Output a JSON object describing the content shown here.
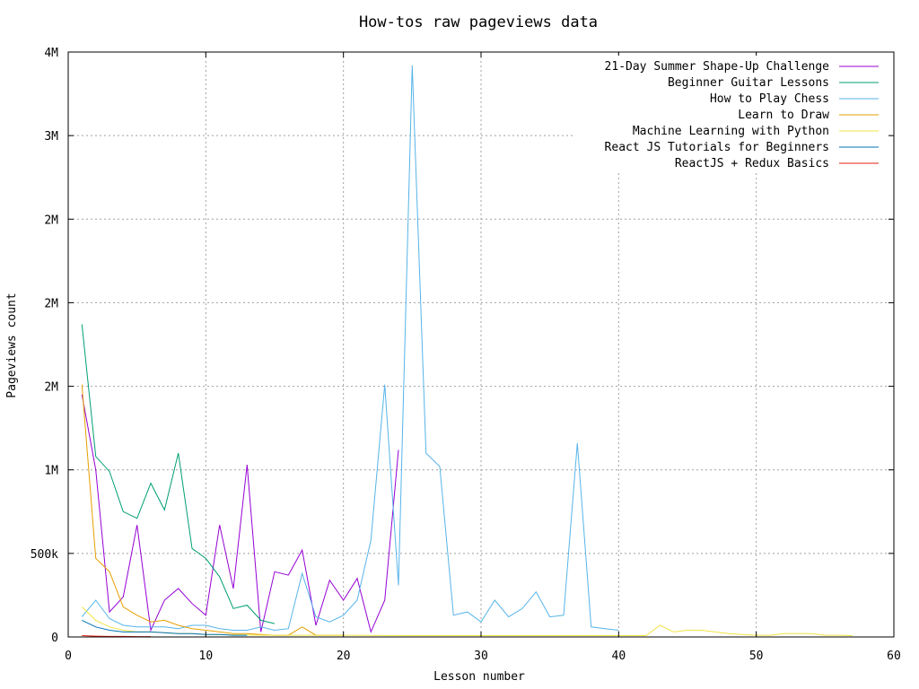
{
  "chart_data": {
    "type": "line",
    "title": "How-tos raw pageviews data",
    "xlabel": "Lesson number",
    "ylabel": "Pageviews count",
    "xlim": [
      0,
      60
    ],
    "ylim": [
      0,
      3500000
    ],
    "grid": true,
    "legend_position": "top-right",
    "x_ticks": [
      0,
      10,
      20,
      30,
      40,
      50,
      60
    ],
    "x_tick_labels": [
      "0",
      "10",
      "20",
      "30",
      "40",
      "50",
      "60"
    ],
    "y_ticks": [
      0,
      500000,
      1000000,
      1500000,
      2000000,
      2500000,
      3000000,
      3500000
    ],
    "y_tick_labels": [
      "0",
      "500k",
      "1M",
      "2M",
      "2M",
      "2M",
      "3M",
      "4M"
    ],
    "series": [
      {
        "name": "21-Day Summer Shape-Up Challenge",
        "color": "#9400d3",
        "x": [
          1,
          2,
          3,
          4,
          5,
          6,
          7,
          8,
          9,
          10,
          11,
          12,
          13,
          14,
          15,
          16,
          17,
          18,
          19,
          20,
          21,
          22,
          23,
          24
        ],
        "y": [
          1450000,
          1000000,
          150000,
          240000,
          670000,
          40000,
          220000,
          290000,
          200000,
          130000,
          670000,
          290000,
          1030000,
          30000,
          390000,
          370000,
          520000,
          70000,
          340000,
          220000,
          350000,
          30000,
          220000,
          1120000
        ]
      },
      {
        "name": "Beginner Guitar Lessons",
        "color": "#009e73",
        "x": [
          1,
          2,
          3,
          4,
          5,
          6,
          7,
          8,
          9,
          10,
          11,
          12,
          13,
          14,
          15
        ],
        "y": [
          1870000,
          1080000,
          990000,
          750000,
          710000,
          920000,
          760000,
          1100000,
          530000,
          470000,
          360000,
          170000,
          190000,
          100000,
          80000
        ]
      },
      {
        "name": "How to Play Chess",
        "color": "#56b4e9",
        "x": [
          1,
          2,
          3,
          4,
          5,
          6,
          7,
          8,
          9,
          10,
          11,
          12,
          13,
          14,
          15,
          16,
          17,
          18,
          19,
          20,
          21,
          22,
          23,
          24,
          25,
          26,
          27,
          28,
          29,
          30,
          31,
          32,
          33,
          34,
          35,
          36,
          37,
          38,
          39,
          40
        ],
        "y": [
          120000,
          220000,
          110000,
          70000,
          60000,
          60000,
          60000,
          50000,
          70000,
          70000,
          50000,
          40000,
          40000,
          60000,
          40000,
          50000,
          380000,
          120000,
          90000,
          130000,
          220000,
          580000,
          1510000,
          310000,
          3420000,
          1100000,
          1020000,
          130000,
          150000,
          90000,
          220000,
          120000,
          170000,
          270000,
          120000,
          130000,
          1160000,
          60000,
          50000,
          40000
        ]
      },
      {
        "name": "Learn to Draw",
        "color": "#e69f00",
        "x": [
          1,
          2,
          3,
          4,
          5,
          6,
          7,
          8,
          9,
          10,
          11,
          12,
          13,
          14,
          15,
          16,
          17,
          18,
          19,
          20
        ],
        "y": [
          1510000,
          470000,
          390000,
          180000,
          130000,
          90000,
          100000,
          70000,
          50000,
          40000,
          30000,
          20000,
          20000,
          15000,
          10000,
          10000,
          60000,
          10000,
          10000,
          10000
        ]
      },
      {
        "name": "Machine Learning with Python",
        "color": "#f0e442",
        "x": [
          1,
          2,
          3,
          4,
          5,
          6,
          7,
          8,
          9,
          10,
          15,
          20,
          25,
          30,
          35,
          40,
          42,
          43,
          44,
          45,
          46,
          47,
          48,
          49,
          50,
          51,
          52,
          53,
          54,
          55,
          56,
          57
        ],
        "y": [
          180000,
          100000,
          60000,
          40000,
          30000,
          30000,
          25000,
          20000,
          20000,
          15000,
          10000,
          10000,
          8000,
          8000,
          8000,
          8000,
          8000,
          70000,
          30000,
          40000,
          40000,
          30000,
          20000,
          15000,
          10000,
          10000,
          20000,
          20000,
          20000,
          10000,
          10000,
          8000
        ]
      },
      {
        "name": "React JS Tutorials for Beginners",
        "color": "#0072b2",
        "x": [
          1,
          2,
          3,
          4,
          5,
          6,
          7,
          8,
          9,
          10,
          11,
          12,
          13
        ],
        "y": [
          100000,
          60000,
          40000,
          30000,
          30000,
          30000,
          25000,
          20000,
          20000,
          15000,
          15000,
          10000,
          10000
        ]
      },
      {
        "name": "ReactJS + Redux Basics",
        "color": "#e51e10",
        "x": [
          1,
          2,
          3,
          4,
          5,
          6
        ],
        "y": [
          8000,
          5000,
          3000,
          3000,
          2000,
          2000
        ]
      }
    ]
  }
}
